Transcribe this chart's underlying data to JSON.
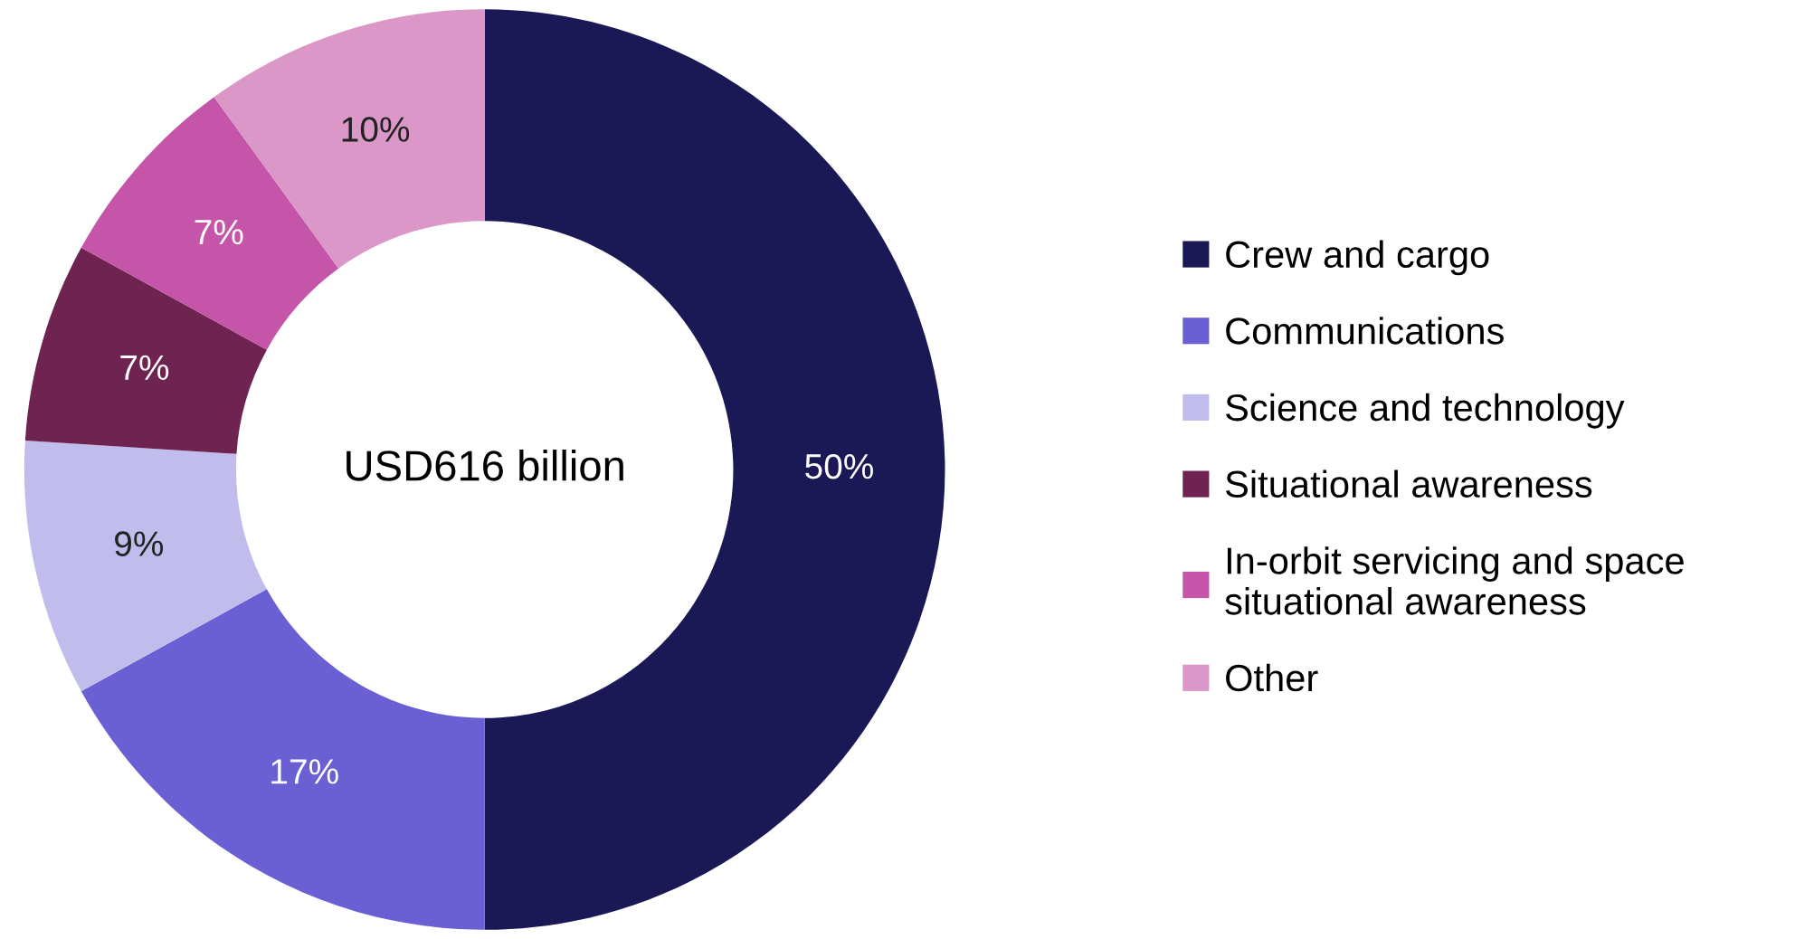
{
  "chart_data": {
    "type": "donut",
    "categories": [
      "Crew and cargo",
      "Communications",
      "Science and technology",
      "Situational awareness",
      "In-orbit servicing and space\nsituational awareness",
      "Other"
    ],
    "values": [
      50,
      17,
      9,
      7,
      7,
      10
    ],
    "colors": [
      "#1b1856",
      "#6a5fd3",
      "#c0bcec",
      "#6e2350",
      "#c455a8",
      "#dc97c9"
    ],
    "value_labels": [
      "50%",
      "17%",
      "9%",
      "7%",
      "7%",
      "10%"
    ],
    "annotations": [
      "USD616 billion"
    ],
    "legend": "right"
  }
}
